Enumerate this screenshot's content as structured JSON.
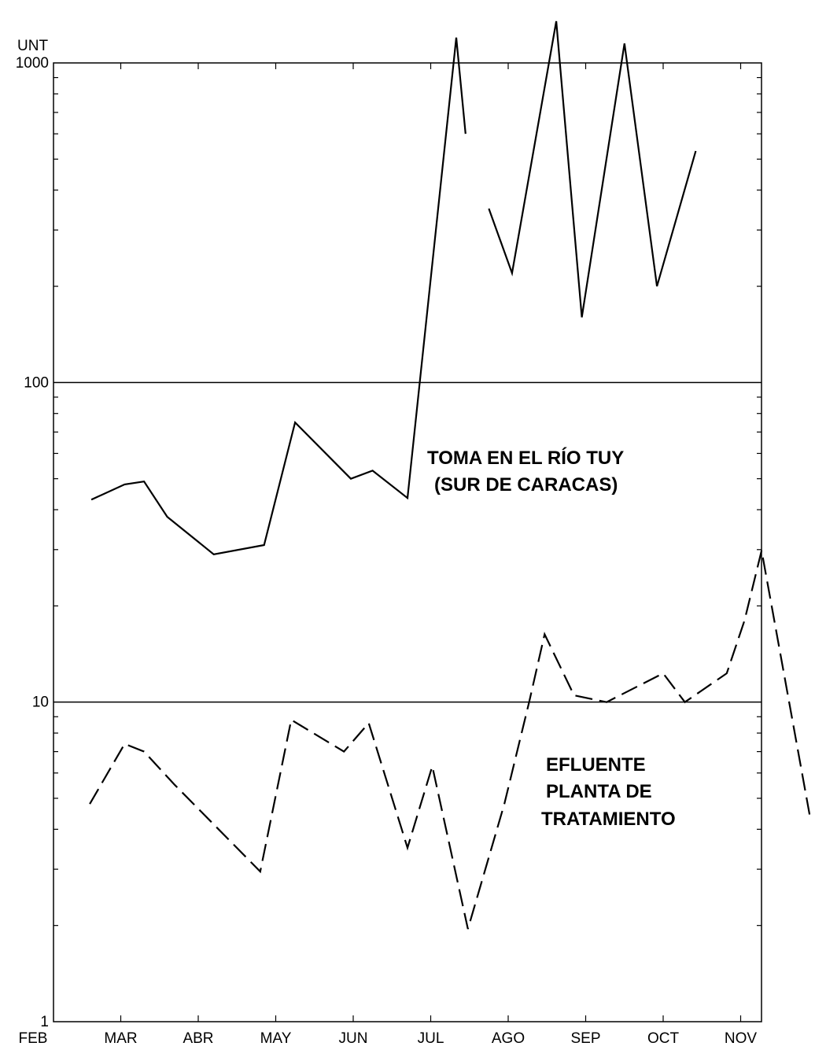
{
  "chart_data": {
    "type": "line",
    "title": "",
    "xlabel": "",
    "ylabel": "UNT",
    "yscale": "log",
    "ylim": [
      1,
      1000
    ],
    "grid": "horizontal lines at 10 and 100",
    "y_tick_labels": [
      "1",
      "10",
      "100",
      "1000"
    ],
    "x_tick_labels": [
      "FEB",
      "MAR",
      "ABR",
      "MAY",
      "JUN",
      "JUL",
      "AGO",
      "SEP",
      "OCT",
      "NOV"
    ],
    "annotations": [
      {
        "lines": [
          "TOMA EN EL RÍO TUY",
          "(SUR DE CARACAS)"
        ],
        "series": "rio_tuy"
      },
      {
        "lines": [
          "EFLUENTE",
          "PLANTA DE",
          "TRATAMIENTO"
        ],
        "series": "efluente"
      }
    ],
    "series": [
      {
        "id": "rio_tuy",
        "style": "solid",
        "segments": [
          {
            "style": "solid",
            "points": [
              [
                0.62,
                43
              ],
              [
                1.05,
                48
              ],
              [
                1.3,
                49
              ],
              [
                1.6,
                38
              ],
              [
                2.2,
                29
              ],
              [
                2.85,
                31
              ],
              [
                3.25,
                75
              ],
              [
                3.97,
                50
              ],
              [
                4.25,
                53
              ],
              [
                4.7,
                43.5
              ],
              [
                5.33,
                1200
              ],
              [
                5.45,
                600
              ]
            ]
          },
          {
            "style": "solid",
            "points": [
              [
                5.75,
                350
              ],
              [
                6.05,
                220
              ],
              [
                6.62,
                1350
              ],
              [
                6.95,
                160
              ],
              [
                7.5,
                1150
              ],
              [
                7.92,
                200
              ],
              [
                8.42,
                530
              ]
            ]
          }
        ]
      },
      {
        "id": "efluente",
        "style": "dashed",
        "segments": [
          {
            "style": "dashed",
            "points": [
              [
                0.6,
                4.8
              ],
              [
                1.05,
                7.4
              ],
              [
                1.3,
                7.0
              ],
              [
                1.7,
                5.5
              ],
              [
                2.8,
                2.95
              ],
              [
                3.2,
                8.8
              ],
              [
                3.88,
                7.0
              ],
              [
                4.2,
                8.6
              ],
              [
                4.7,
                3.5
              ],
              [
                5.02,
                6.3
              ],
              [
                5.48,
                1.95
              ],
              [
                5.95,
                4.8
              ],
              [
                6.27,
                10.0
              ],
              [
                6.47,
                16.3
              ],
              [
                6.85,
                10.5
              ],
              [
                7.27,
                10.0
              ],
              [
                8.0,
                12.3
              ],
              [
                8.28,
                10.0
              ],
              [
                8.82,
                12.3
              ],
              [
                9.05,
                18.0
              ],
              [
                9.27,
                29.8
              ],
              [
                9.9,
                4.3
              ]
            ]
          }
        ]
      }
    ]
  }
}
